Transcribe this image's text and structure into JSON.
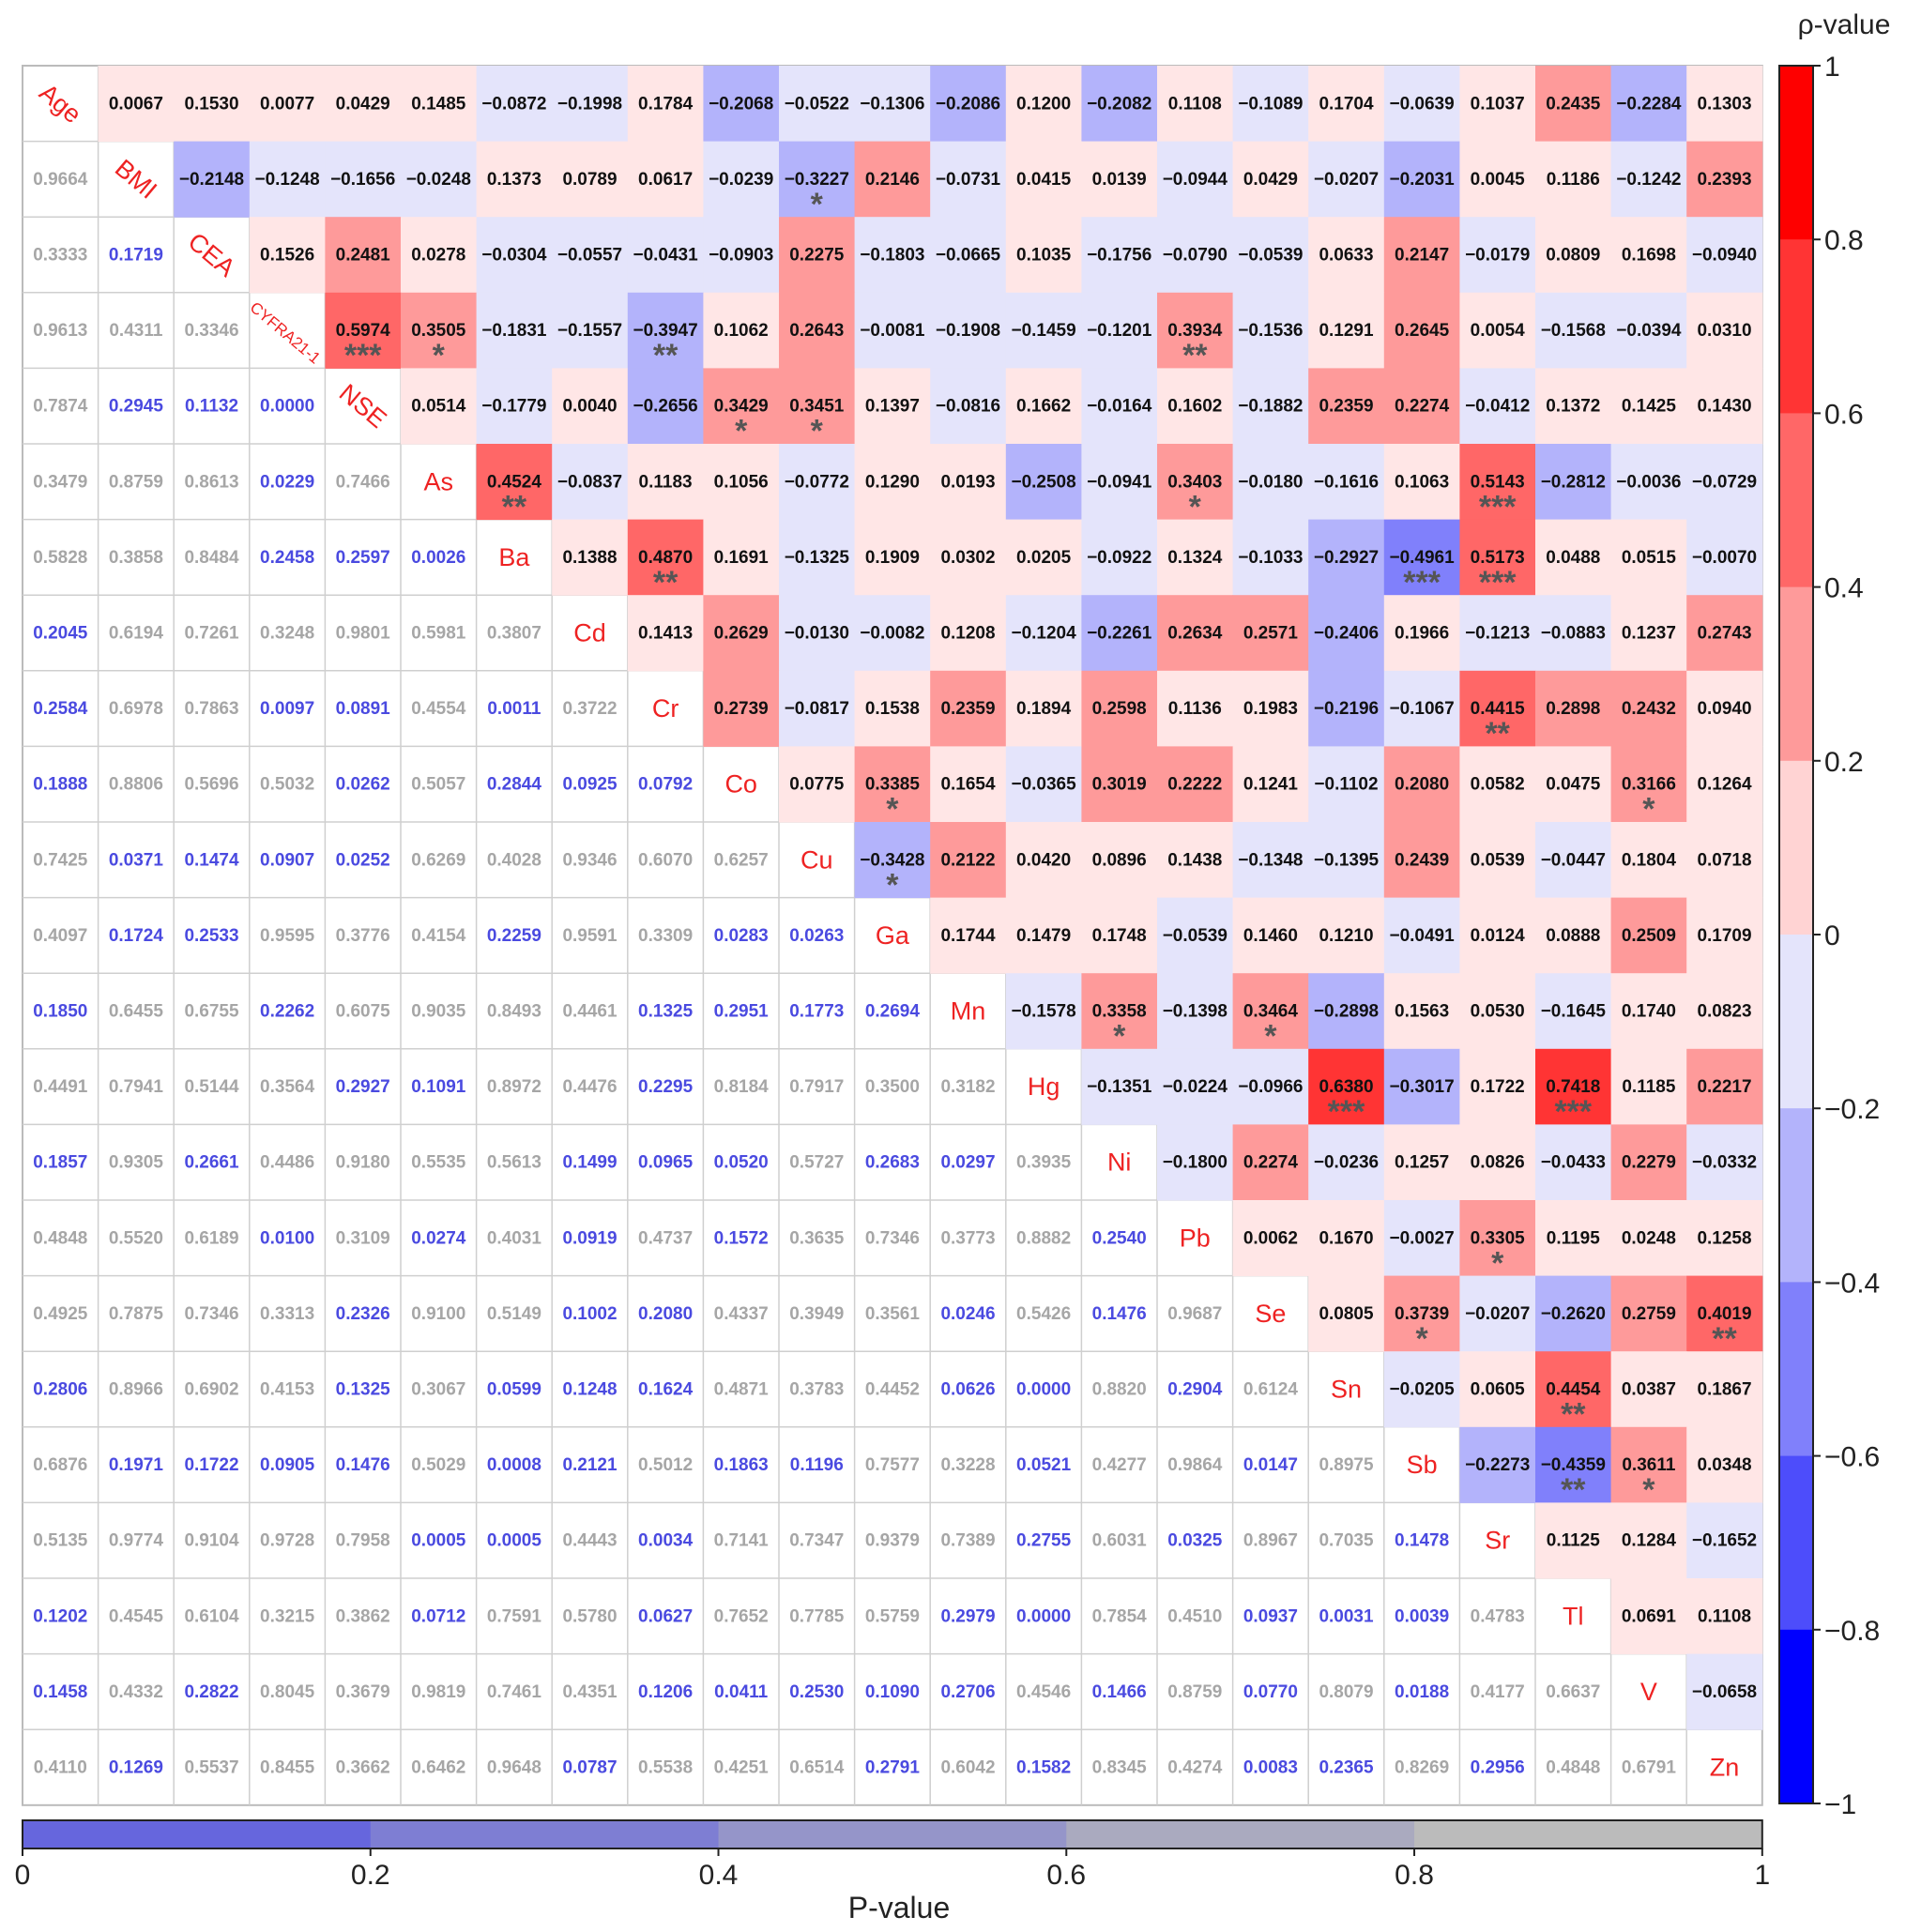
{
  "chart_data": {
    "type": "heatmap",
    "variables": [
      "Age",
      "BMI",
      "CEA",
      "CYFRA21-1",
      "NSE",
      "As",
      "Ba",
      "Cd",
      "Cr",
      "Co",
      "Cu",
      "Ga",
      "Mn",
      "Hg",
      "Ni",
      "Pb",
      "Se",
      "Sn",
      "Sb",
      "Sr",
      "Tl",
      "V",
      "Zn"
    ],
    "upper_label": "ρ-value",
    "lower_label": "P-value",
    "rho_scale": [
      -1,
      1
    ],
    "p_scale": [
      0,
      1
    ],
    "rho_ticks": [
      "1",
      "0.8",
      "0.6",
      "0.4",
      "0.2",
      "0",
      "−0.2",
      "−0.4",
      "−0.6",
      "−0.8",
      "−1"
    ],
    "p_ticks": [
      "0",
      "0.2",
      "0.4",
      "0.6",
      "0.8",
      "1"
    ],
    "rho": [
      [
        null,
        0.0067,
        0.153,
        0.0077,
        0.0429,
        0.1485,
        -0.0872,
        -0.1998,
        0.1784,
        -0.2068,
        -0.0522,
        -0.1306,
        -0.2086,
        0.12,
        -0.2082,
        0.1108,
        -0.1089,
        0.1704,
        -0.0639,
        0.1037,
        0.2435,
        -0.2284,
        0.1303
      ],
      [
        null,
        null,
        -0.2148,
        -0.1248,
        -0.1656,
        -0.0248,
        0.1373,
        0.0789,
        0.0617,
        -0.0239,
        -0.3227,
        0.2146,
        -0.0731,
        0.0415,
        0.0139,
        -0.0944,
        0.0429,
        -0.0207,
        -0.2031,
        0.0045,
        0.1186,
        -0.1242,
        0.2393
      ],
      [
        null,
        null,
        null,
        0.1526,
        0.2481,
        0.0278,
        -0.0304,
        -0.0557,
        -0.0431,
        -0.0903,
        0.2275,
        -0.1803,
        -0.0665,
        0.1035,
        -0.1756,
        -0.079,
        -0.0539,
        0.0633,
        0.2147,
        -0.0179,
        0.0809,
        0.1698,
        -0.094
      ],
      [
        null,
        null,
        null,
        null,
        0.5974,
        0.3505,
        -0.1831,
        -0.1557,
        -0.3947,
        0.1062,
        0.2643,
        -0.0081,
        -0.1908,
        -0.1459,
        -0.1201,
        0.3934,
        -0.1536,
        0.1291,
        0.2645,
        0.0054,
        -0.1568,
        -0.0394,
        0.031
      ],
      [
        null,
        null,
        null,
        null,
        null,
        0.0514,
        -0.1779,
        0.004,
        -0.2656,
        0.3429,
        0.3451,
        0.1397,
        -0.0816,
        0.1662,
        -0.0164,
        0.1602,
        -0.1882,
        0.2359,
        0.2274,
        -0.0412,
        0.1372,
        0.1425,
        0.143
      ],
      [
        null,
        null,
        null,
        null,
        null,
        null,
        0.4524,
        -0.0837,
        0.1183,
        0.1056,
        -0.0772,
        0.129,
        0.0193,
        -0.2508,
        -0.0941,
        0.3403,
        -0.018,
        -0.1616,
        0.1063,
        0.5143,
        -0.2812,
        -0.0036,
        -0.0729
      ],
      [
        null,
        null,
        null,
        null,
        null,
        null,
        null,
        0.1388,
        0.487,
        0.1691,
        -0.1325,
        0.1909,
        0.0302,
        0.0205,
        -0.0922,
        0.1324,
        -0.1033,
        -0.2927,
        -0.4961,
        0.5173,
        0.0488,
        0.0515,
        -0.007
      ],
      [
        null,
        null,
        null,
        null,
        null,
        null,
        null,
        null,
        0.1413,
        0.2629,
        -0.013,
        -0.0082,
        0.1208,
        -0.1204,
        -0.2261,
        0.2634,
        0.2571,
        -0.2406,
        0.1966,
        -0.1213,
        -0.0883,
        0.1237,
        0.2743
      ],
      [
        null,
        null,
        null,
        null,
        null,
        null,
        null,
        null,
        null,
        0.2739,
        -0.0817,
        0.1538,
        0.2359,
        0.1894,
        0.2598,
        0.1136,
        0.1983,
        -0.2196,
        -0.1067,
        0.4415,
        0.2898,
        0.2432,
        0.094
      ],
      [
        null,
        null,
        null,
        null,
        null,
        null,
        null,
        null,
        null,
        null,
        0.0775,
        0.3385,
        0.1654,
        -0.0365,
        0.3019,
        0.2222,
        0.1241,
        -0.1102,
        0.208,
        0.0582,
        0.0475,
        0.3166,
        0.1264
      ],
      [
        null,
        null,
        null,
        null,
        null,
        null,
        null,
        null,
        null,
        null,
        null,
        -0.3428,
        0.2122,
        0.042,
        0.0896,
        0.1438,
        -0.1348,
        -0.1395,
        0.2439,
        0.0539,
        -0.0447,
        0.1804,
        0.0718
      ],
      [
        null,
        null,
        null,
        null,
        null,
        null,
        null,
        null,
        null,
        null,
        null,
        null,
        0.1744,
        0.1479,
        0.1748,
        -0.0539,
        0.146,
        0.121,
        -0.0491,
        0.0124,
        0.0888,
        0.2509,
        0.1709
      ],
      [
        null,
        null,
        null,
        null,
        null,
        null,
        null,
        null,
        null,
        null,
        null,
        null,
        null,
        -0.1578,
        0.3358,
        -0.1398,
        0.3464,
        -0.2898,
        0.1563,
        0.053,
        -0.1645,
        0.174,
        0.0823
      ],
      [
        null,
        null,
        null,
        null,
        null,
        null,
        null,
        null,
        null,
        null,
        null,
        null,
        null,
        null,
        -0.1351,
        -0.0224,
        -0.0966,
        0.638,
        -0.3017,
        0.1722,
        0.7418,
        0.1185,
        0.2217
      ],
      [
        null,
        null,
        null,
        null,
        null,
        null,
        null,
        null,
        null,
        null,
        null,
        null,
        null,
        null,
        null,
        -0.18,
        0.2274,
        -0.0236,
        0.1257,
        0.0826,
        -0.0433,
        0.2279,
        -0.0332
      ],
      [
        null,
        null,
        null,
        null,
        null,
        null,
        null,
        null,
        null,
        null,
        null,
        null,
        null,
        null,
        null,
        null,
        0.0062,
        0.167,
        -0.0027,
        0.3305,
        0.1195,
        0.0248,
        0.1258
      ],
      [
        null,
        null,
        null,
        null,
        null,
        null,
        null,
        null,
        null,
        null,
        null,
        null,
        null,
        null,
        null,
        null,
        null,
        0.0805,
        0.3739,
        -0.0207,
        -0.262,
        0.2759,
        0.4019
      ],
      [
        null,
        null,
        null,
        null,
        null,
        null,
        null,
        null,
        null,
        null,
        null,
        null,
        null,
        null,
        null,
        null,
        null,
        null,
        -0.0205,
        0.0605,
        0.4454,
        0.0387,
        0.1867
      ],
      [
        null,
        null,
        null,
        null,
        null,
        null,
        null,
        null,
        null,
        null,
        null,
        null,
        null,
        null,
        null,
        null,
        null,
        null,
        null,
        -0.2273,
        -0.4359,
        0.3611,
        0.0348
      ],
      [
        null,
        null,
        null,
        null,
        null,
        null,
        null,
        null,
        null,
        null,
        null,
        null,
        null,
        null,
        null,
        null,
        null,
        null,
        null,
        null,
        0.1125,
        0.1284,
        -0.1652
      ],
      [
        null,
        null,
        null,
        null,
        null,
        null,
        null,
        null,
        null,
        null,
        null,
        null,
        null,
        null,
        null,
        null,
        null,
        null,
        null,
        null,
        null,
        0.0691,
        0.1108
      ],
      [
        null,
        null,
        null,
        null,
        null,
        null,
        null,
        null,
        null,
        null,
        null,
        null,
        null,
        null,
        null,
        null,
        null,
        null,
        null,
        null,
        null,
        null,
        -0.0658
      ],
      [
        null,
        null,
        null,
        null,
        null,
        null,
        null,
        null,
        null,
        null,
        null,
        null,
        null,
        null,
        null,
        null,
        null,
        null,
        null,
        null,
        null,
        null,
        null
      ]
    ],
    "p": [
      [],
      [
        0.9664
      ],
      [
        0.3333,
        0.1719
      ],
      [
        0.9613,
        0.4311,
        0.3346
      ],
      [
        0.7874,
        0.2945,
        0.1132,
        0.0
      ],
      [
        0.3479,
        0.8759,
        0.8613,
        0.0229,
        0.7466
      ],
      [
        0.5828,
        0.3858,
        0.8484,
        0.2458,
        0.2597,
        0.0026
      ],
      [
        0.2045,
        0.6194,
        0.7261,
        0.3248,
        0.9801,
        0.5981,
        0.3807
      ],
      [
        0.2584,
        0.6978,
        0.7863,
        0.0097,
        0.0891,
        0.4554,
        0.0011,
        0.3722
      ],
      [
        0.1888,
        0.8806,
        0.5696,
        0.5032,
        0.0262,
        0.5057,
        0.2844,
        0.0925,
        0.0792
      ],
      [
        0.7425,
        0.0371,
        0.1474,
        0.0907,
        0.0252,
        0.6269,
        0.4028,
        0.9346,
        0.607,
        0.6257
      ],
      [
        0.4097,
        0.1724,
        0.2533,
        0.9595,
        0.3776,
        0.4154,
        0.2259,
        0.9591,
        0.3309,
        0.0283,
        0.0263
      ],
      [
        0.185,
        0.6455,
        0.6755,
        0.2262,
        0.6075,
        0.9035,
        0.8493,
        0.4461,
        0.1325,
        0.2951,
        0.1773,
        0.2694
      ],
      [
        0.4491,
        0.7941,
        0.5144,
        0.3564,
        0.2927,
        0.1091,
        0.8972,
        0.4476,
        0.2295,
        0.8184,
        0.7917,
        0.35,
        0.3182
      ],
      [
        0.1857,
        0.9305,
        0.2661,
        0.4486,
        0.918,
        0.5535,
        0.5613,
        0.1499,
        0.0965,
        0.052,
        0.5727,
        0.2683,
        0.0297,
        0.3935
      ],
      [
        0.4848,
        0.552,
        0.6189,
        0.01,
        0.3109,
        0.0274,
        0.4031,
        0.0919,
        0.4737,
        0.1572,
        0.3635,
        0.7346,
        0.3773,
        0.8882,
        0.254
      ],
      [
        0.4925,
        0.7875,
        0.7346,
        0.3313,
        0.2326,
        0.91,
        0.5149,
        0.1002,
        0.208,
        0.4337,
        0.3949,
        0.3561,
        0.0246,
        0.5426,
        0.1476,
        0.9687
      ],
      [
        0.2806,
        0.8966,
        0.6902,
        0.4153,
        0.1325,
        0.3067,
        0.0599,
        0.1248,
        0.1624,
        0.4871,
        0.3783,
        0.4452,
        0.0626,
        0.0,
        0.882,
        0.2904,
        0.6124
      ],
      [
        0.6876,
        0.1971,
        0.1722,
        0.0905,
        0.1476,
        0.5029,
        0.0008,
        0.2121,
        0.5012,
        0.1863,
        0.1196,
        0.7577,
        0.3228,
        0.0521,
        0.4277,
        0.9864,
        0.0147,
        0.8975
      ],
      [
        0.5135,
        0.9774,
        0.9104,
        0.9728,
        0.7958,
        0.0005,
        0.0005,
        0.4443,
        0.0034,
        0.7141,
        0.7347,
        0.9379,
        0.7389,
        0.2755,
        0.6031,
        0.0325,
        0.8967,
        0.7035,
        0.1478
      ],
      [
        0.1202,
        0.4545,
        0.6104,
        0.3215,
        0.3862,
        0.0712,
        0.7591,
        0.578,
        0.0627,
        0.7652,
        0.7785,
        0.5759,
        0.2979,
        0.0,
        0.7854,
        0.451,
        0.0937,
        0.0031,
        0.0039,
        0.4783
      ],
      [
        0.1458,
        0.4332,
        0.2822,
        0.8045,
        0.3679,
        0.9819,
        0.7461,
        0.4351,
        0.1206,
        0.0411,
        0.253,
        0.109,
        0.2706,
        0.4546,
        0.1466,
        0.8759,
        0.077,
        0.8079,
        0.0188,
        0.4177,
        0.6637
      ],
      [
        0.411,
        0.1269,
        0.5537,
        0.8455,
        0.3662,
        0.6462,
        0.9648,
        0.0787,
        0.5538,
        0.4251,
        0.6514,
        0.2791,
        0.6042,
        0.1582,
        0.8345,
        0.4274,
        0.0083,
        0.2365,
        0.8269,
        0.2956,
        0.4848,
        0.6791
      ]
    ],
    "significance": [
      {
        "row": "BMI",
        "col": "Cu",
        "stars": "*"
      },
      {
        "row": "CYFRA21-1",
        "col": "NSE",
        "stars": "***"
      },
      {
        "row": "CYFRA21-1",
        "col": "As",
        "stars": "*"
      },
      {
        "row": "CYFRA21-1",
        "col": "Cr",
        "stars": "**"
      },
      {
        "row": "CYFRA21-1",
        "col": "Pb",
        "stars": "**"
      },
      {
        "row": "NSE",
        "col": "Co",
        "stars": "*"
      },
      {
        "row": "NSE",
        "col": "Cu",
        "stars": "*"
      },
      {
        "row": "As",
        "col": "Ba",
        "stars": "**"
      },
      {
        "row": "As",
        "col": "Pb",
        "stars": "*"
      },
      {
        "row": "As",
        "col": "Sr",
        "stars": "***"
      },
      {
        "row": "Ba",
        "col": "Cr",
        "stars": "**"
      },
      {
        "row": "Ba",
        "col": "Sb",
        "stars": "***"
      },
      {
        "row": "Ba",
        "col": "Sr",
        "stars": "***"
      },
      {
        "row": "Cr",
        "col": "Sr",
        "stars": "**"
      },
      {
        "row": "Co",
        "col": "Ga",
        "stars": "*"
      },
      {
        "row": "Co",
        "col": "V",
        "stars": "*"
      },
      {
        "row": "Cu",
        "col": "Ga",
        "stars": "*"
      },
      {
        "row": "Mn",
        "col": "Ni",
        "stars": "*"
      },
      {
        "row": "Mn",
        "col": "Se",
        "stars": "*"
      },
      {
        "row": "Hg",
        "col": "Sn",
        "stars": "***"
      },
      {
        "row": "Hg",
        "col": "Tl",
        "stars": "***"
      },
      {
        "row": "Pb",
        "col": "Sr",
        "stars": "*"
      },
      {
        "row": "Se",
        "col": "Sb",
        "stars": "*"
      },
      {
        "row": "Se",
        "col": "Zn",
        "stars": "**"
      },
      {
        "row": "Sn",
        "col": "Tl",
        "stars": "**"
      },
      {
        "row": "Sb",
        "col": "Tl",
        "stars": "**"
      },
      {
        "row": "Sb",
        "col": "V",
        "stars": "*"
      }
    ],
    "colors": {
      "diag_text": "#ee2222",
      "rho_text": "#111111",
      "p_text_significant": "#4a4ae0",
      "p_text_nonsignificant": "#a6a6a6",
      "star": "#555555",
      "grid": "#cfcfcf"
    },
    "rho_colorbar": [
      "#fe0000",
      "#ff3434",
      "#ff6767",
      "#fe9a9a",
      "#ffcece",
      "#fff0f0",
      "#e0e0fa",
      "#b3b3fb",
      "#8080fb",
      "#4d4dfb",
      "#0000ff"
    ],
    "p_colorbar": [
      "#6666dd",
      "#7e7ed3",
      "#9595c9",
      "#aaaabf",
      "#bbbbbb"
    ]
  }
}
